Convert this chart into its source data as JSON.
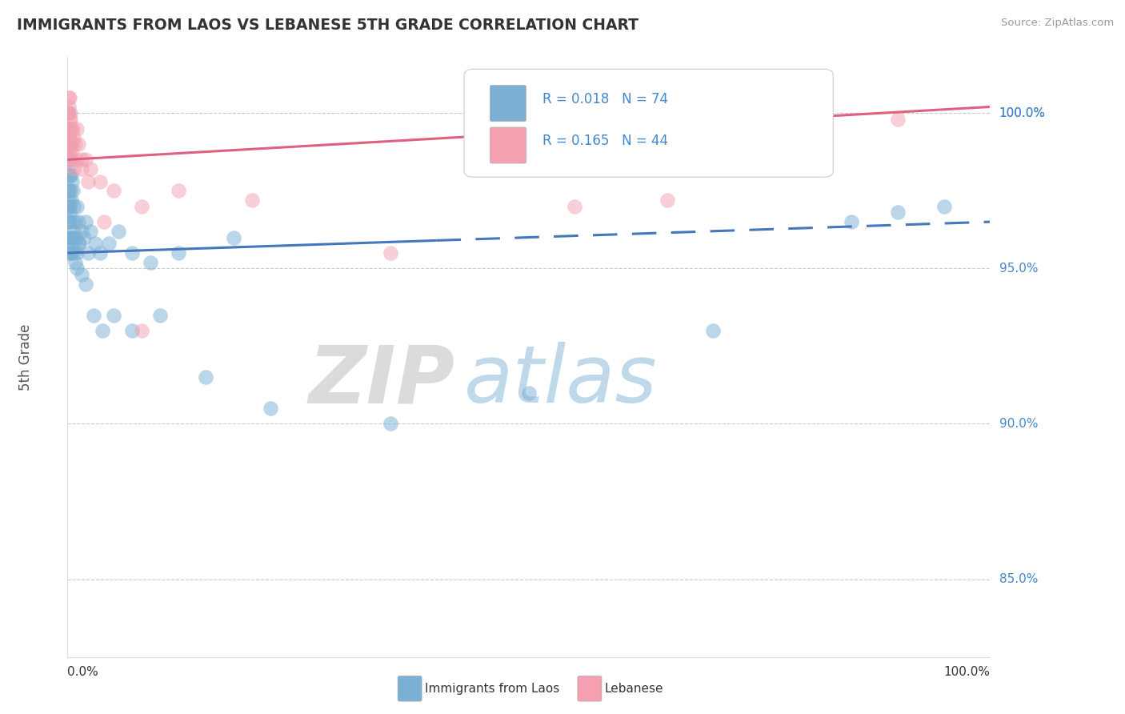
{
  "title": "IMMIGRANTS FROM LAOS VS LEBANESE 5TH GRADE CORRELATION CHART",
  "source": "Source: ZipAtlas.com",
  "ylabel": "5th Grade",
  "legend_label_blue": "Immigrants from Laos",
  "legend_label_pink": "Lebanese",
  "R_blue": 0.018,
  "N_blue": 74,
  "R_pink": 0.165,
  "N_pink": 44,
  "color_blue": "#7BAFD4",
  "color_pink": "#F4A0B0",
  "color_trend_blue": "#4477BB",
  "color_trend_pink": "#E06080",
  "watermark_zip": "ZIP",
  "watermark_atlas": "atlas",
  "xmin": 0.0,
  "xmax": 100.0,
  "ymin": 82.5,
  "ymax": 101.8,
  "yticks": [
    85.0,
    90.0,
    95.0,
    100.0
  ],
  "ytick_labels": [
    "85.0%",
    "90.0%",
    "95.0%",
    "100.0%"
  ],
  "blue_trend_y0": 95.5,
  "blue_trend_y100": 96.5,
  "blue_solid_end_x": 40.0,
  "pink_trend_y0": 98.5,
  "pink_trend_y100": 100.2,
  "blue_scatter_x": [
    0.05,
    0.05,
    0.05,
    0.1,
    0.1,
    0.1,
    0.1,
    0.15,
    0.15,
    0.15,
    0.2,
    0.2,
    0.2,
    0.2,
    0.3,
    0.3,
    0.3,
    0.4,
    0.4,
    0.5,
    0.5,
    0.6,
    0.6,
    0.7,
    0.7,
    0.8,
    0.9,
    1.0,
    1.0,
    1.2,
    1.3,
    1.5,
    1.8,
    2.0,
    2.2,
    2.5,
    3.0,
    3.5,
    4.5,
    5.5,
    7.0,
    9.0,
    12.0,
    18.0,
    0.05,
    0.05,
    0.1,
    0.1,
    0.15,
    0.2,
    0.25,
    0.3,
    0.4,
    0.5,
    0.6,
    0.7,
    0.8,
    1.0,
    1.2,
    1.5,
    2.0,
    2.8,
    3.8,
    5.0,
    7.0,
    10.0,
    15.0,
    22.0,
    35.0,
    50.0,
    70.0,
    85.0,
    90.0,
    95.0
  ],
  "blue_scatter_y": [
    97.5,
    98.2,
    99.0,
    97.0,
    98.0,
    99.2,
    100.0,
    97.5,
    98.5,
    99.5,
    97.0,
    98.0,
    99.0,
    96.5,
    97.5,
    98.5,
    96.0,
    97.2,
    98.0,
    96.5,
    97.8,
    96.0,
    97.5,
    96.2,
    97.0,
    96.5,
    96.0,
    97.0,
    95.5,
    96.5,
    95.8,
    96.2,
    96.0,
    96.5,
    95.5,
    96.2,
    95.8,
    95.5,
    95.8,
    96.2,
    95.5,
    95.2,
    95.5,
    96.0,
    96.5,
    97.0,
    96.0,
    97.2,
    95.5,
    96.8,
    95.5,
    96.0,
    95.5,
    96.0,
    95.8,
    95.5,
    95.2,
    95.0,
    95.8,
    94.8,
    94.5,
    93.5,
    93.0,
    93.5,
    93.0,
    93.5,
    91.5,
    90.5,
    90.0,
    91.0,
    93.0,
    96.5,
    96.8,
    97.0
  ],
  "pink_scatter_x": [
    0.05,
    0.05,
    0.05,
    0.1,
    0.1,
    0.15,
    0.15,
    0.2,
    0.2,
    0.25,
    0.3,
    0.35,
    0.4,
    0.5,
    0.6,
    0.7,
    0.8,
    1.0,
    1.2,
    1.5,
    2.0,
    2.5,
    3.5,
    5.0,
    8.0,
    12.0,
    20.0,
    35.0,
    55.0,
    80.0,
    0.1,
    0.15,
    0.2,
    0.3,
    0.4,
    0.5,
    0.7,
    1.0,
    1.5,
    2.2,
    4.0,
    8.0,
    65.0,
    90.0
  ],
  "pink_scatter_y": [
    99.5,
    100.0,
    98.8,
    99.5,
    100.5,
    99.2,
    100.2,
    99.8,
    100.5,
    99.5,
    100.0,
    99.8,
    99.5,
    99.0,
    99.5,
    99.2,
    99.0,
    99.5,
    99.0,
    98.5,
    98.5,
    98.2,
    97.8,
    97.5,
    97.0,
    97.5,
    97.2,
    95.5,
    97.0,
    99.5,
    98.8,
    99.2,
    98.5,
    99.0,
    98.8,
    98.5,
    98.2,
    98.5,
    98.2,
    97.8,
    96.5,
    93.0,
    97.2,
    99.8
  ]
}
